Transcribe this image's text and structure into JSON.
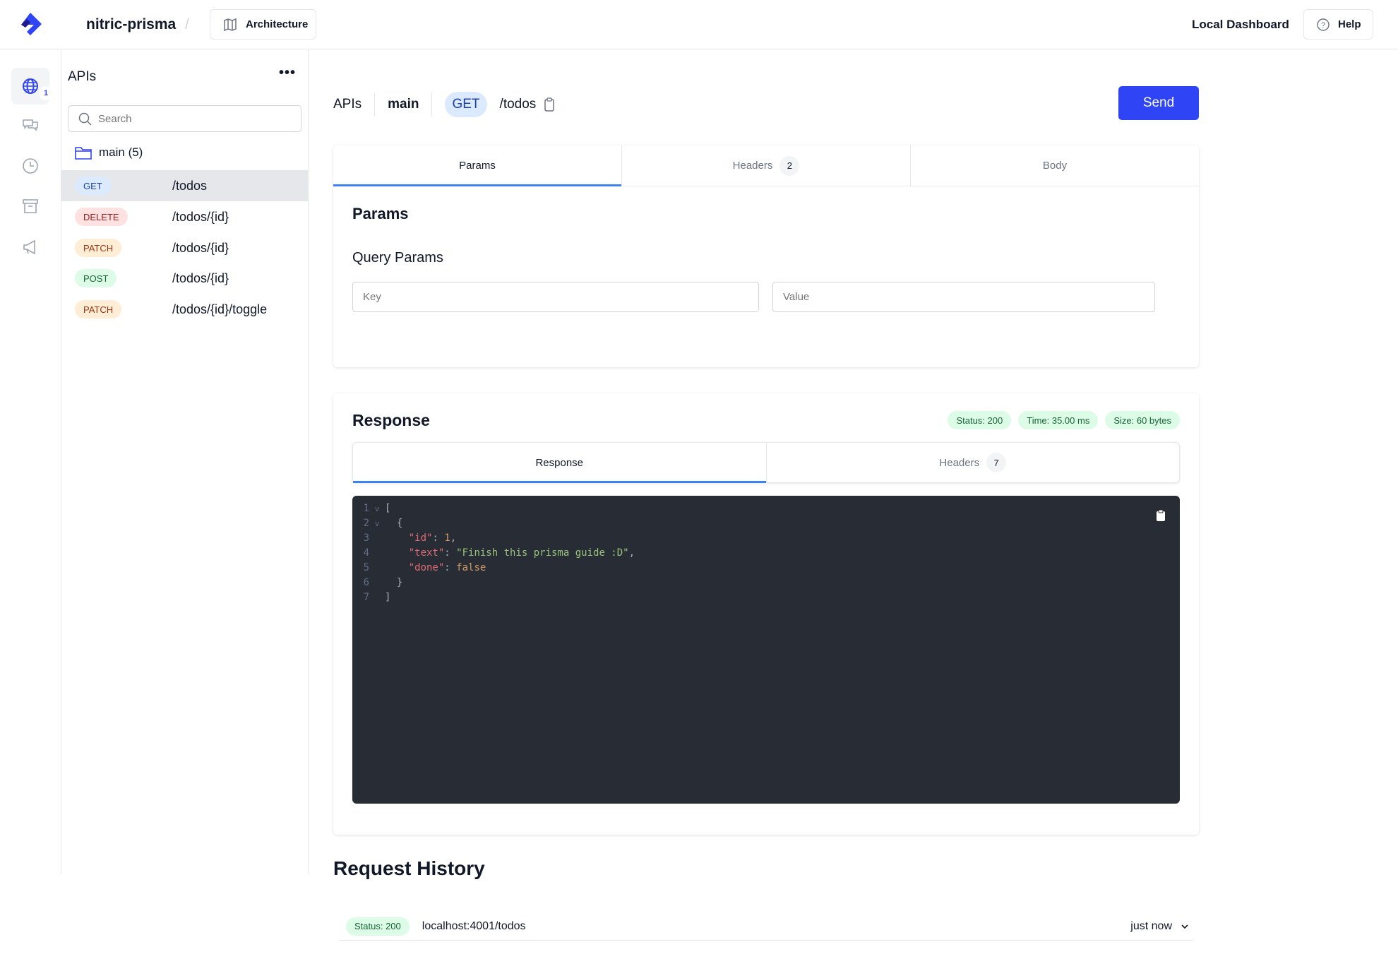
{
  "header": {
    "project": "nitric-prisma",
    "separator": "/",
    "architecture_label": "Architecture",
    "dashboard_title": "Local Dashboard",
    "help_label": "Help"
  },
  "rail": {
    "items": [
      {
        "icon": "globe-icon",
        "badge": "1",
        "active": true
      },
      {
        "icon": "chat-icon"
      },
      {
        "icon": "clock-icon"
      },
      {
        "icon": "archive-icon"
      },
      {
        "icon": "megaphone-icon"
      }
    ]
  },
  "sidebar": {
    "title": "APIs",
    "search_placeholder": "Search",
    "group": "main (5)",
    "routes": [
      {
        "method": "GET",
        "path": "/todos",
        "selected": true
      },
      {
        "method": "DELETE",
        "path": "/todos/{id}"
      },
      {
        "method": "PATCH",
        "path": "/todos/{id}"
      },
      {
        "method": "POST",
        "path": "/todos/{id}"
      },
      {
        "method": "PATCH",
        "path": "/todos/{id}/toggle"
      }
    ]
  },
  "breadcrumb": {
    "api": "APIs",
    "name": "main",
    "method": "GET",
    "path": "/todos"
  },
  "send_label": "Send",
  "request": {
    "tabs": [
      {
        "label": "Params",
        "active": true
      },
      {
        "label": "Headers",
        "count": "2"
      },
      {
        "label": "Body"
      }
    ],
    "heading": "Params",
    "subheading": "Query Params",
    "key_placeholder": "Key",
    "value_placeholder": "Value"
  },
  "response": {
    "heading": "Response",
    "status": "Status: 200",
    "time": "Time: 35.00 ms",
    "size": "Size: 60 bytes",
    "tabs": [
      {
        "label": "Response",
        "active": true
      },
      {
        "label": "Headers",
        "count": "7"
      }
    ],
    "lines": [
      {
        "n": "1",
        "fold": "v"
      },
      {
        "n": "2",
        "fold": "v"
      },
      {
        "n": "3"
      },
      {
        "n": "4"
      },
      {
        "n": "5"
      },
      {
        "n": "6"
      },
      {
        "n": "7"
      }
    ],
    "json": {
      "id_key": "\"id\"",
      "id_val": "1",
      "text_key": "\"text\"",
      "text_val": "\"Finish this prisma guide :D\"",
      "done_key": "\"done\"",
      "done_val": "false"
    }
  },
  "history": {
    "heading": "Request History",
    "items": [
      {
        "status": "Status: 200",
        "url": "localhost:4001/todos",
        "time": "just now"
      }
    ]
  },
  "colors": {
    "accent": "#2f44f5",
    "tab_indicator": "#3b82f6",
    "editor_bg": "#282c34"
  }
}
